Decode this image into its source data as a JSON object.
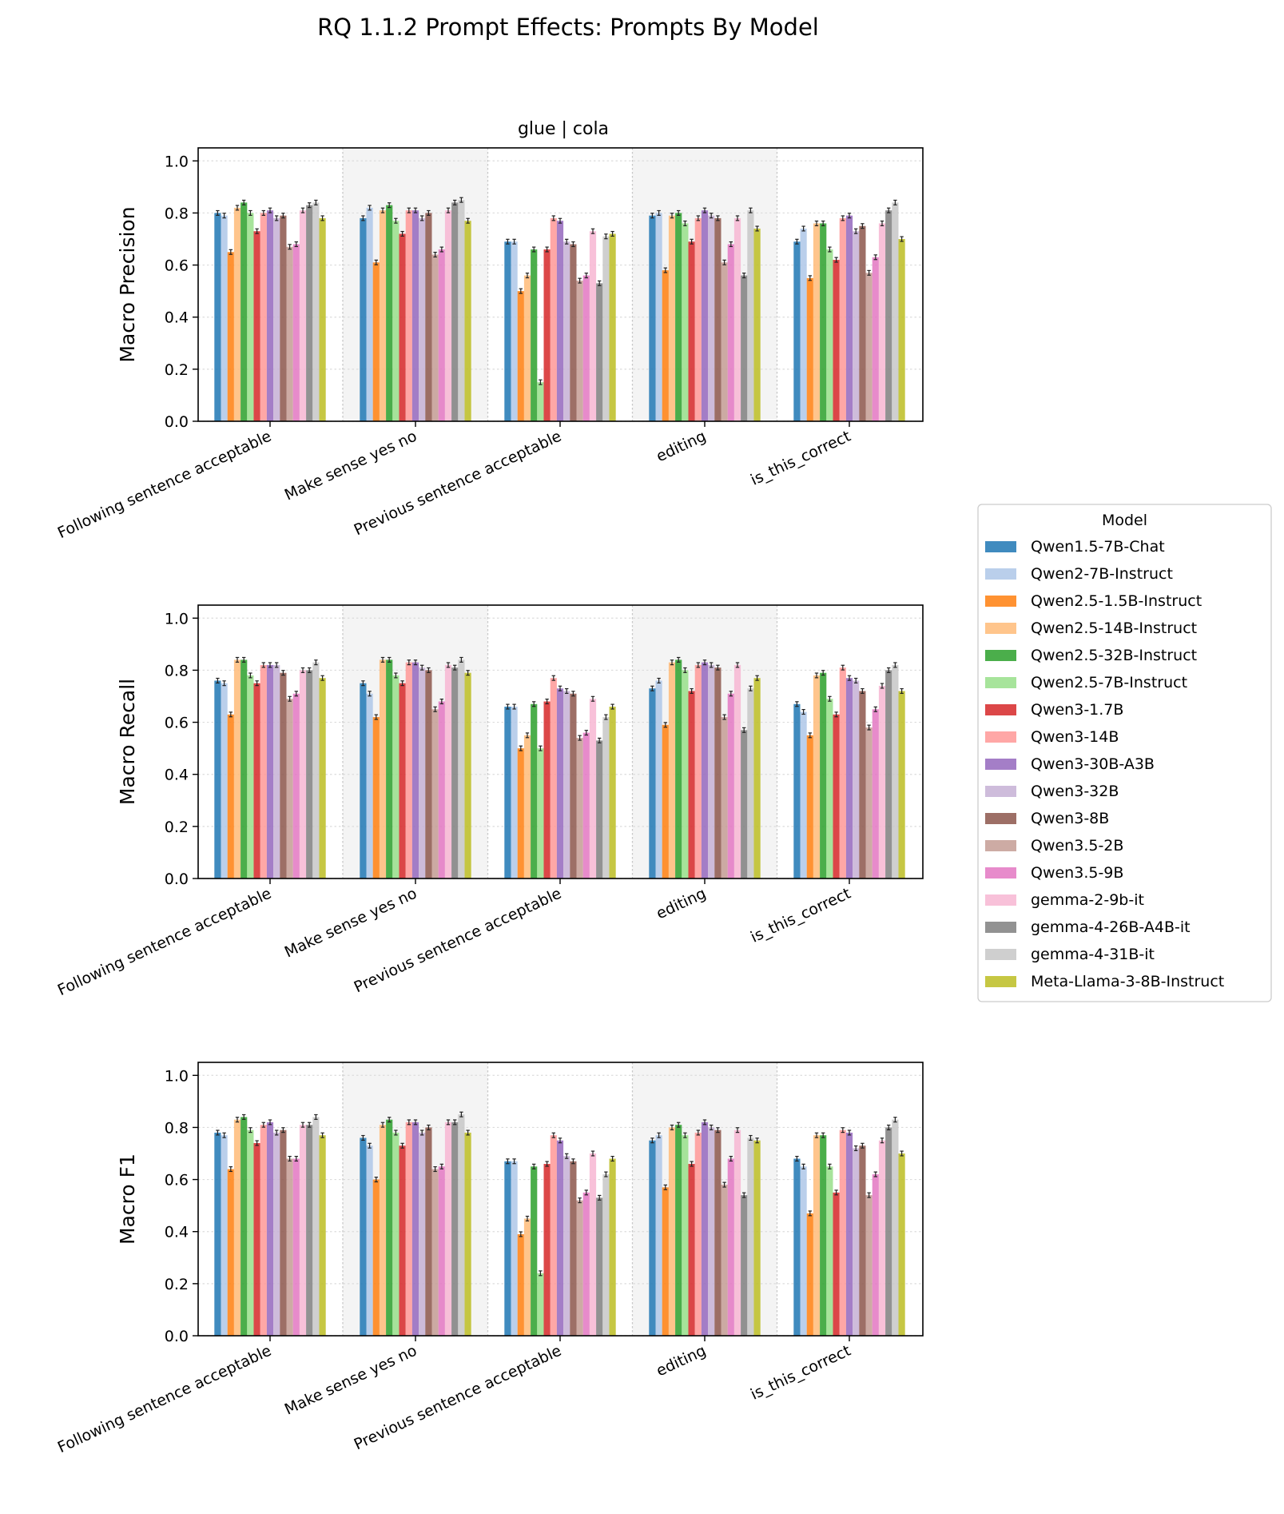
{
  "figure": {
    "suptitle": "RQ 1.1.2 Prompt Effects: Prompts By Model",
    "panel_title": "glue | cola"
  },
  "legend": {
    "title": "Model"
  },
  "chart_data": [
    {
      "type": "bar",
      "ylabel": "Macro Precision",
      "ylim": [
        0,
        1.05
      ],
      "yticks": [
        "0.0",
        "0.2",
        "0.4",
        "0.6",
        "0.8",
        "1.0"
      ],
      "grid": true,
      "categories": [
        "Following sentence acceptable",
        "Make sense yes no",
        "Previous sentence acceptable",
        "editing",
        "is_this_correct"
      ],
      "series": [
        {
          "name": "Qwen1.5-7B-Chat",
          "color": "#1f77b4",
          "values": [
            0.8,
            0.78,
            0.69,
            0.79,
            0.69
          ]
        },
        {
          "name": "Qwen2-7B-Instruct",
          "color": "#aec7e8",
          "values": [
            0.79,
            0.82,
            0.69,
            0.8,
            0.74
          ]
        },
        {
          "name": "Qwen2.5-1.5B-Instruct",
          "color": "#ff7f0e",
          "values": [
            0.65,
            0.61,
            0.5,
            0.58,
            0.55
          ]
        },
        {
          "name": "Qwen2.5-14B-Instruct",
          "color": "#ffbb78",
          "values": [
            0.82,
            0.81,
            0.56,
            0.79,
            0.76
          ]
        },
        {
          "name": "Qwen2.5-32B-Instruct",
          "color": "#2ca02c",
          "values": [
            0.84,
            0.83,
            0.66,
            0.8,
            0.76
          ]
        },
        {
          "name": "Qwen2.5-7B-Instruct",
          "color": "#98df8a",
          "values": [
            0.8,
            0.77,
            0.15,
            0.76,
            0.66
          ]
        },
        {
          "name": "Qwen3-1.7B",
          "color": "#d62728",
          "values": [
            0.73,
            0.72,
            0.66,
            0.69,
            0.62
          ]
        },
        {
          "name": "Qwen3-14B",
          "color": "#ff9896",
          "values": [
            0.8,
            0.81,
            0.78,
            0.78,
            0.78
          ]
        },
        {
          "name": "Qwen3-30B-A3B",
          "color": "#9467bd",
          "values": [
            0.81,
            0.81,
            0.77,
            0.81,
            0.79
          ]
        },
        {
          "name": "Qwen3-32B",
          "color": "#c5b0d5",
          "values": [
            0.78,
            0.78,
            0.69,
            0.79,
            0.73
          ]
        },
        {
          "name": "Qwen3-8B",
          "color": "#8c564b",
          "values": [
            0.79,
            0.8,
            0.68,
            0.78,
            0.75
          ]
        },
        {
          "name": "Qwen3.5-2B",
          "color": "#c49c94",
          "values": [
            0.67,
            0.64,
            0.54,
            0.61,
            0.57
          ]
        },
        {
          "name": "Qwen3.5-9B",
          "color": "#e377c2",
          "values": [
            0.68,
            0.66,
            0.56,
            0.68,
            0.63
          ]
        },
        {
          "name": "gemma-2-9b-it",
          "color": "#f7b6d2",
          "values": [
            0.81,
            0.81,
            0.73,
            0.78,
            0.76
          ]
        },
        {
          "name": "gemma-4-26B-A4B-it",
          "color": "#7f7f7f",
          "values": [
            0.83,
            0.84,
            0.53,
            0.56,
            0.81
          ]
        },
        {
          "name": "gemma-4-31B-it",
          "color": "#c7c7c7",
          "values": [
            0.84,
            0.85,
            0.71,
            0.81,
            0.84
          ]
        },
        {
          "name": "Meta-Llama-3-8B-Instruct",
          "color": "#bcbd22",
          "values": [
            0.78,
            0.77,
            0.72,
            0.74,
            0.7
          ]
        }
      ]
    },
    {
      "type": "bar",
      "ylabel": "Macro Recall",
      "ylim": [
        0,
        1.05
      ],
      "yticks": [
        "0.0",
        "0.2",
        "0.4",
        "0.6",
        "0.8",
        "1.0"
      ],
      "grid": true,
      "categories": [
        "Following sentence acceptable",
        "Make sense yes no",
        "Previous sentence acceptable",
        "editing",
        "is_this_correct"
      ],
      "series": [
        {
          "name": "Qwen1.5-7B-Chat",
          "color": "#1f77b4",
          "values": [
            0.76,
            0.75,
            0.66,
            0.73,
            0.67
          ]
        },
        {
          "name": "Qwen2-7B-Instruct",
          "color": "#aec7e8",
          "values": [
            0.75,
            0.71,
            0.66,
            0.76,
            0.64
          ]
        },
        {
          "name": "Qwen2.5-1.5B-Instruct",
          "color": "#ff7f0e",
          "values": [
            0.63,
            0.62,
            0.5,
            0.59,
            0.55
          ]
        },
        {
          "name": "Qwen2.5-14B-Instruct",
          "color": "#ffbb78",
          "values": [
            0.84,
            0.84,
            0.55,
            0.83,
            0.78
          ]
        },
        {
          "name": "Qwen2.5-32B-Instruct",
          "color": "#2ca02c",
          "values": [
            0.84,
            0.84,
            0.67,
            0.84,
            0.79
          ]
        },
        {
          "name": "Qwen2.5-7B-Instruct",
          "color": "#98df8a",
          "values": [
            0.78,
            0.78,
            0.5,
            0.8,
            0.69
          ]
        },
        {
          "name": "Qwen3-1.7B",
          "color": "#d62728",
          "values": [
            0.75,
            0.75,
            0.68,
            0.72,
            0.63
          ]
        },
        {
          "name": "Qwen3-14B",
          "color": "#ff9896",
          "values": [
            0.82,
            0.83,
            0.77,
            0.82,
            0.81
          ]
        },
        {
          "name": "Qwen3-30B-A3B",
          "color": "#9467bd",
          "values": [
            0.82,
            0.83,
            0.73,
            0.83,
            0.77
          ]
        },
        {
          "name": "Qwen3-32B",
          "color": "#c5b0d5",
          "values": [
            0.82,
            0.81,
            0.72,
            0.82,
            0.76
          ]
        },
        {
          "name": "Qwen3-8B",
          "color": "#8c564b",
          "values": [
            0.79,
            0.8,
            0.71,
            0.81,
            0.72
          ]
        },
        {
          "name": "Qwen3.5-2B",
          "color": "#c49c94",
          "values": [
            0.69,
            0.65,
            0.54,
            0.62,
            0.58
          ]
        },
        {
          "name": "Qwen3.5-9B",
          "color": "#e377c2",
          "values": [
            0.71,
            0.68,
            0.56,
            0.71,
            0.65
          ]
        },
        {
          "name": "gemma-2-9b-it",
          "color": "#f7b6d2",
          "values": [
            0.8,
            0.82,
            0.69,
            0.82,
            0.74
          ]
        },
        {
          "name": "gemma-4-26B-A4B-it",
          "color": "#7f7f7f",
          "values": [
            0.8,
            0.81,
            0.53,
            0.57,
            0.8
          ]
        },
        {
          "name": "gemma-4-31B-it",
          "color": "#c7c7c7",
          "values": [
            0.83,
            0.84,
            0.62,
            0.73,
            0.82
          ]
        },
        {
          "name": "Meta-Llama-3-8B-Instruct",
          "color": "#bcbd22",
          "values": [
            0.77,
            0.79,
            0.66,
            0.77,
            0.72
          ]
        }
      ]
    },
    {
      "type": "bar",
      "ylabel": "Macro F1",
      "ylim": [
        0,
        1.05
      ],
      "yticks": [
        "0.0",
        "0.2",
        "0.4",
        "0.6",
        "0.8",
        "1.0"
      ],
      "grid": true,
      "categories": [
        "Following sentence acceptable",
        "Make sense yes no",
        "Previous sentence acceptable",
        "editing",
        "is_this_correct"
      ],
      "series": [
        {
          "name": "Qwen1.5-7B-Chat",
          "color": "#1f77b4",
          "values": [
            0.78,
            0.76,
            0.67,
            0.75,
            0.68
          ]
        },
        {
          "name": "Qwen2-7B-Instruct",
          "color": "#aec7e8",
          "values": [
            0.77,
            0.73,
            0.67,
            0.77,
            0.65
          ]
        },
        {
          "name": "Qwen2.5-1.5B-Instruct",
          "color": "#ff7f0e",
          "values": [
            0.64,
            0.6,
            0.39,
            0.57,
            0.47
          ]
        },
        {
          "name": "Qwen2.5-14B-Instruct",
          "color": "#ffbb78",
          "values": [
            0.83,
            0.81,
            0.45,
            0.8,
            0.77
          ]
        },
        {
          "name": "Qwen2.5-32B-Instruct",
          "color": "#2ca02c",
          "values": [
            0.84,
            0.83,
            0.65,
            0.81,
            0.77
          ]
        },
        {
          "name": "Qwen2.5-7B-Instruct",
          "color": "#98df8a",
          "values": [
            0.79,
            0.78,
            0.24,
            0.77,
            0.65
          ]
        },
        {
          "name": "Qwen3-1.7B",
          "color": "#d62728",
          "values": [
            0.74,
            0.73,
            0.66,
            0.66,
            0.55
          ]
        },
        {
          "name": "Qwen3-14B",
          "color": "#ff9896",
          "values": [
            0.81,
            0.82,
            0.77,
            0.78,
            0.79
          ]
        },
        {
          "name": "Qwen3-30B-A3B",
          "color": "#9467bd",
          "values": [
            0.82,
            0.82,
            0.75,
            0.82,
            0.78
          ]
        },
        {
          "name": "Qwen3-32B",
          "color": "#c5b0d5",
          "values": [
            0.78,
            0.78,
            0.69,
            0.8,
            0.72
          ]
        },
        {
          "name": "Qwen3-8B",
          "color": "#8c564b",
          "values": [
            0.79,
            0.8,
            0.67,
            0.79,
            0.73
          ]
        },
        {
          "name": "Qwen3.5-2B",
          "color": "#c49c94",
          "values": [
            0.68,
            0.64,
            0.52,
            0.58,
            0.54
          ]
        },
        {
          "name": "Qwen3.5-9B",
          "color": "#e377c2",
          "values": [
            0.68,
            0.65,
            0.55,
            0.68,
            0.62
          ]
        },
        {
          "name": "gemma-2-9b-it",
          "color": "#f7b6d2",
          "values": [
            0.81,
            0.82,
            0.7,
            0.79,
            0.75
          ]
        },
        {
          "name": "gemma-4-26B-A4B-it",
          "color": "#7f7f7f",
          "values": [
            0.81,
            0.82,
            0.53,
            0.54,
            0.8
          ]
        },
        {
          "name": "gemma-4-31B-it",
          "color": "#c7c7c7",
          "values": [
            0.84,
            0.85,
            0.62,
            0.76,
            0.83
          ]
        },
        {
          "name": "Meta-Llama-3-8B-Instruct",
          "color": "#bcbd22",
          "values": [
            0.77,
            0.78,
            0.68,
            0.75,
            0.7
          ]
        }
      ]
    }
  ]
}
